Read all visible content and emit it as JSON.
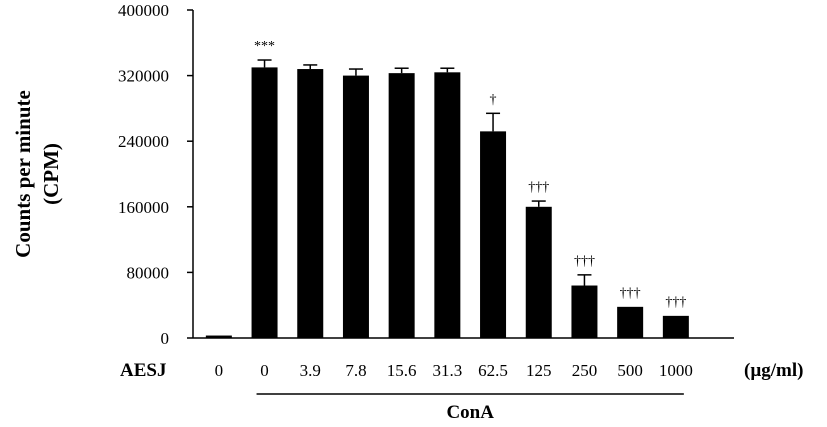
{
  "chart_data": {
    "type": "bar",
    "ylabel": [
      "Counts per minute",
      "(CPM)"
    ],
    "ylim": [
      0,
      400000
    ],
    "yticks": [
      0,
      80000,
      160000,
      240000,
      320000,
      400000
    ],
    "row_label": "AESJ",
    "unit_label": "(µg/ml)",
    "group_label": "ConA",
    "categories": [
      "0",
      "0",
      "3.9",
      "7.8",
      "15.6",
      "31.3",
      "62.5",
      "125",
      "250",
      "500",
      "1000"
    ],
    "values": [
      3000,
      330000,
      328000,
      320000,
      323000,
      324000,
      252000,
      160000,
      64000,
      38000,
      27000
    ],
    "errors": [
      0,
      9000,
      5000,
      8000,
      6000,
      5000,
      22000,
      7000,
      13000,
      0,
      0
    ],
    "annotations": [
      "",
      "***",
      "",
      "",
      "",
      "",
      "†",
      "†††",
      "†††",
      "†††",
      "†††"
    ],
    "bar_color": "#000000"
  }
}
